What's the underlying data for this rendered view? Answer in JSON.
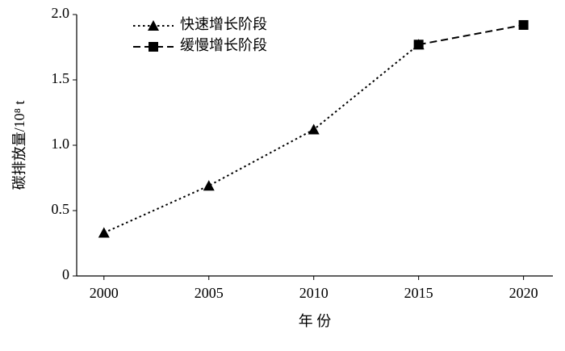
{
  "chart_data": {
    "type": "line",
    "x_label": "年 份",
    "y_label": "碳排放量/10⁸ t",
    "x": [
      2000,
      2005,
      2010,
      2015,
      2020
    ],
    "xlim": [
      1998.7,
      2021.4
    ],
    "xticks": [
      2000,
      2005,
      2010,
      2015,
      2020
    ],
    "ylim": [
      0,
      2.0
    ],
    "yticks": [
      0,
      0.5,
      {
        "value": 1,
        "label": "1.0"
      },
      1.5,
      {
        "value": 2,
        "label": "2.0"
      }
    ],
    "grid": false,
    "legend": "upper left",
    "series": [
      {
        "name": "快速增长阶段",
        "color": "#000000",
        "line_style": "dotted",
        "marker": "triangle",
        "values": [
          0.33,
          0.69,
          1.12,
          1.77,
          null
        ]
      },
      {
        "name": "缓慢增长阶段",
        "color": "#000000",
        "line_style": "dashed",
        "marker": "square",
        "values": [
          null,
          null,
          null,
          1.77,
          1.92
        ]
      }
    ]
  }
}
